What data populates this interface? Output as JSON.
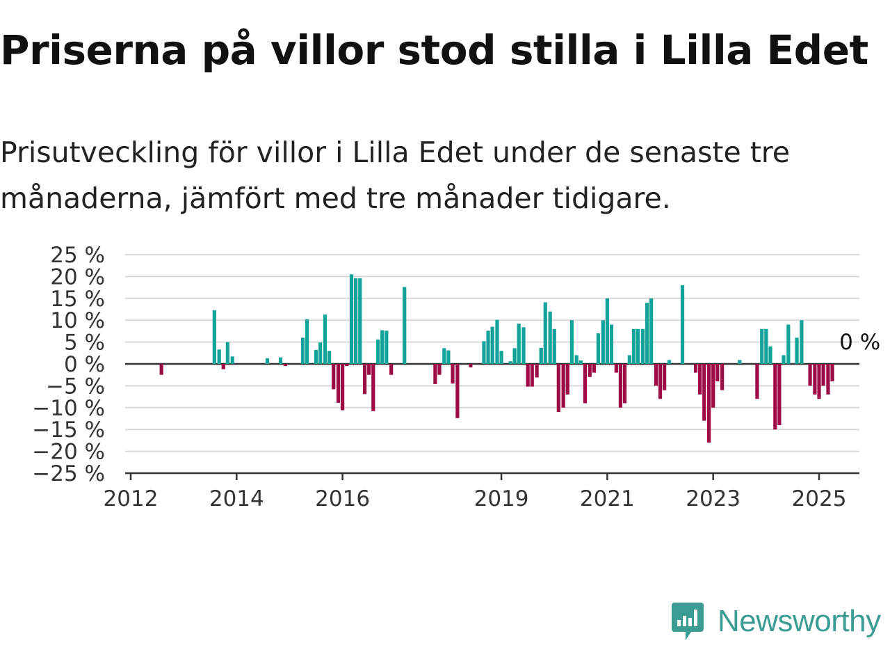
{
  "title": "Priserna på villor stod stilla i Lilla Edet",
  "subtitle": "Prisutveckling för villor i Lilla Edet under de senaste tre månaderna, jämfört med tre månader tidigare.",
  "brand": {
    "name": "Newsworthy",
    "color": "#3a9c92",
    "logo_icon": "bar-chart-speech-bubble-icon"
  },
  "colors": {
    "positive": "#14a39a",
    "negative": "#9c0b45",
    "grid": "#d9d9d9",
    "zero_line": "#333333"
  },
  "chart_data": {
    "type": "bar",
    "ylim": [
      -25,
      25
    ],
    "y_ticks": [
      25,
      20,
      15,
      10,
      5,
      0,
      -5,
      -10,
      -15,
      -20,
      -25
    ],
    "y_tick_labels": [
      "25 %",
      "20 %",
      "15 %",
      "10 %",
      "5 %",
      "0 %",
      "−5 %",
      "−10 %",
      "−15 %",
      "−20 %",
      "−25 %"
    ],
    "x_ticks": [
      2012,
      2014,
      2016,
      2019,
      2021,
      2023,
      2025
    ],
    "x_tick_labels": [
      "2012",
      "2014",
      "2016",
      "2019",
      "2021",
      "2023",
      "2025"
    ],
    "x_range": [
      2011.95,
      2025.75
    ],
    "last_value_label": "0 %",
    "bars": [
      {
        "x": 2012.58,
        "y": -2.5
      },
      {
        "x": 2013.58,
        "y": 12.3
      },
      {
        "x": 2013.67,
        "y": 3.3
      },
      {
        "x": 2013.75,
        "y": -1.2
      },
      {
        "x": 2013.83,
        "y": 5.0
      },
      {
        "x": 2013.92,
        "y": 1.7
      },
      {
        "x": 2014.58,
        "y": 1.3
      },
      {
        "x": 2014.83,
        "y": 1.5
      },
      {
        "x": 2014.92,
        "y": -0.5
      },
      {
        "x": 2015.25,
        "y": 6.0
      },
      {
        "x": 2015.33,
        "y": 10.2
      },
      {
        "x": 2015.5,
        "y": 3.2
      },
      {
        "x": 2015.58,
        "y": 4.9
      },
      {
        "x": 2015.67,
        "y": 11.3
      },
      {
        "x": 2015.75,
        "y": 3.0
      },
      {
        "x": 2015.83,
        "y": -5.8
      },
      {
        "x": 2015.92,
        "y": -8.9
      },
      {
        "x": 2016.0,
        "y": -10.6
      },
      {
        "x": 2016.08,
        "y": -0.5
      },
      {
        "x": 2016.17,
        "y": 20.5
      },
      {
        "x": 2016.25,
        "y": 19.6
      },
      {
        "x": 2016.33,
        "y": 19.6
      },
      {
        "x": 2016.42,
        "y": -6.9
      },
      {
        "x": 2016.5,
        "y": -2.5
      },
      {
        "x": 2016.58,
        "y": -10.8
      },
      {
        "x": 2016.67,
        "y": 5.6
      },
      {
        "x": 2016.75,
        "y": 7.7
      },
      {
        "x": 2016.83,
        "y": 7.6
      },
      {
        "x": 2016.92,
        "y": -2.5
      },
      {
        "x": 2017.17,
        "y": 17.6
      },
      {
        "x": 2017.75,
        "y": -4.6
      },
      {
        "x": 2017.83,
        "y": -2.5
      },
      {
        "x": 2017.92,
        "y": 3.6
      },
      {
        "x": 2018.0,
        "y": 3.1
      },
      {
        "x": 2018.08,
        "y": -4.5
      },
      {
        "x": 2018.17,
        "y": -12.4
      },
      {
        "x": 2018.42,
        "y": -0.8
      },
      {
        "x": 2018.67,
        "y": 5.2
      },
      {
        "x": 2018.75,
        "y": 7.6
      },
      {
        "x": 2018.83,
        "y": 8.5
      },
      {
        "x": 2018.92,
        "y": 10.1
      },
      {
        "x": 2019.0,
        "y": 3.0
      },
      {
        "x": 2019.17,
        "y": 0.6
      },
      {
        "x": 2019.25,
        "y": 3.6
      },
      {
        "x": 2019.33,
        "y": 9.2
      },
      {
        "x": 2019.42,
        "y": 8.4
      },
      {
        "x": 2019.5,
        "y": -5.2
      },
      {
        "x": 2019.58,
        "y": -5.2
      },
      {
        "x": 2019.67,
        "y": -3.1
      },
      {
        "x": 2019.75,
        "y": 3.7
      },
      {
        "x": 2019.83,
        "y": 14.1
      },
      {
        "x": 2019.92,
        "y": 12.0
      },
      {
        "x": 2020.0,
        "y": 8.0
      },
      {
        "x": 2020.08,
        "y": -11.0
      },
      {
        "x": 2020.17,
        "y": -10.0
      },
      {
        "x": 2020.25,
        "y": -7.0
      },
      {
        "x": 2020.33,
        "y": 10.0
      },
      {
        "x": 2020.42,
        "y": 2.0
      },
      {
        "x": 2020.5,
        "y": 0.8
      },
      {
        "x": 2020.58,
        "y": -9.0
      },
      {
        "x": 2020.67,
        "y": -3.0
      },
      {
        "x": 2020.75,
        "y": -2.0
      },
      {
        "x": 2020.83,
        "y": 7.0
      },
      {
        "x": 2020.92,
        "y": 10.0
      },
      {
        "x": 2021.0,
        "y": 15.0
      },
      {
        "x": 2021.08,
        "y": 9.0
      },
      {
        "x": 2021.17,
        "y": -2.0
      },
      {
        "x": 2021.25,
        "y": -10.0
      },
      {
        "x": 2021.33,
        "y": -9.0
      },
      {
        "x": 2021.42,
        "y": 2.0
      },
      {
        "x": 2021.5,
        "y": 8.0
      },
      {
        "x": 2021.58,
        "y": 8.0
      },
      {
        "x": 2021.67,
        "y": 8.0
      },
      {
        "x": 2021.75,
        "y": 14.0
      },
      {
        "x": 2021.83,
        "y": 15.0
      },
      {
        "x": 2021.92,
        "y": -5.0
      },
      {
        "x": 2022.0,
        "y": -8.0
      },
      {
        "x": 2022.08,
        "y": -6.0
      },
      {
        "x": 2022.17,
        "y": 0.9
      },
      {
        "x": 2022.42,
        "y": 18.0
      },
      {
        "x": 2022.67,
        "y": -2.0
      },
      {
        "x": 2022.75,
        "y": -7.0
      },
      {
        "x": 2022.83,
        "y": -13.0
      },
      {
        "x": 2022.92,
        "y": -18.0
      },
      {
        "x": 2023.0,
        "y": -10.0
      },
      {
        "x": 2023.08,
        "y": -4.0
      },
      {
        "x": 2023.17,
        "y": -6.0
      },
      {
        "x": 2023.5,
        "y": 0.9
      },
      {
        "x": 2023.83,
        "y": -8.0
      },
      {
        "x": 2023.92,
        "y": 8.0
      },
      {
        "x": 2024.0,
        "y": 8.0
      },
      {
        "x": 2024.08,
        "y": 4.0
      },
      {
        "x": 2024.17,
        "y": -15.0
      },
      {
        "x": 2024.25,
        "y": -14.0
      },
      {
        "x": 2024.33,
        "y": 2.0
      },
      {
        "x": 2024.42,
        "y": 9.0
      },
      {
        "x": 2024.58,
        "y": 6.0
      },
      {
        "x": 2024.67,
        "y": 10.0
      },
      {
        "x": 2024.83,
        "y": -5.0
      },
      {
        "x": 2024.92,
        "y": -7.0
      },
      {
        "x": 2025.0,
        "y": -8.0
      },
      {
        "x": 2025.08,
        "y": -5.0
      },
      {
        "x": 2025.17,
        "y": -7.0
      },
      {
        "x": 2025.25,
        "y": -4.0
      },
      {
        "x": 2025.33,
        "y": 0.0
      }
    ]
  }
}
